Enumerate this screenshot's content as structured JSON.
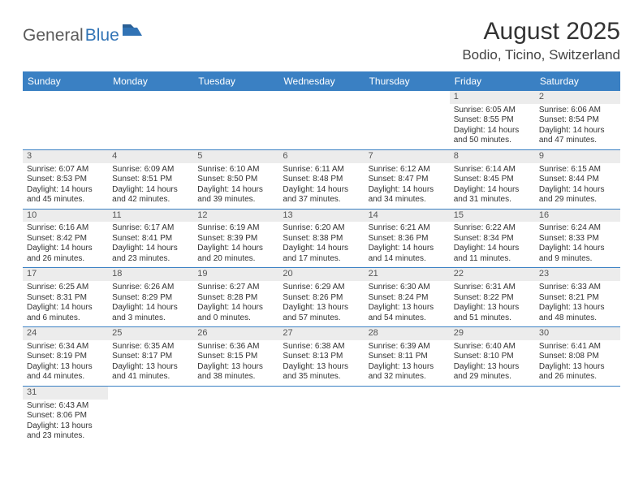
{
  "brand": {
    "general": "General",
    "blue": "Blue"
  },
  "title": "August 2025",
  "location": "Bodio, Ticino, Switzerland",
  "colors": {
    "header_bg": "#3a80c3",
    "header_fg": "#ffffff",
    "rule": "#3a80c3",
    "daynum_bg": "#ececec",
    "text": "#333333",
    "brand_gray": "#5a5a5a",
    "brand_blue": "#3173b5",
    "background": "#ffffff"
  },
  "typography": {
    "title_fontsize": 30,
    "location_fontsize": 17,
    "dayhead_fontsize": 12,
    "cell_fontsize": 10,
    "brand_fontsize": 21
  },
  "day_headers": [
    "Sunday",
    "Monday",
    "Tuesday",
    "Wednesday",
    "Thursday",
    "Friday",
    "Saturday"
  ],
  "weeks": [
    [
      null,
      null,
      null,
      null,
      null,
      {
        "n": "1",
        "sr": "Sunrise: 6:05 AM",
        "ss": "Sunset: 8:55 PM",
        "d1": "Daylight: 14 hours",
        "d2": "and 50 minutes."
      },
      {
        "n": "2",
        "sr": "Sunrise: 6:06 AM",
        "ss": "Sunset: 8:54 PM",
        "d1": "Daylight: 14 hours",
        "d2": "and 47 minutes."
      }
    ],
    [
      {
        "n": "3",
        "sr": "Sunrise: 6:07 AM",
        "ss": "Sunset: 8:53 PM",
        "d1": "Daylight: 14 hours",
        "d2": "and 45 minutes."
      },
      {
        "n": "4",
        "sr": "Sunrise: 6:09 AM",
        "ss": "Sunset: 8:51 PM",
        "d1": "Daylight: 14 hours",
        "d2": "and 42 minutes."
      },
      {
        "n": "5",
        "sr": "Sunrise: 6:10 AM",
        "ss": "Sunset: 8:50 PM",
        "d1": "Daylight: 14 hours",
        "d2": "and 39 minutes."
      },
      {
        "n": "6",
        "sr": "Sunrise: 6:11 AM",
        "ss": "Sunset: 8:48 PM",
        "d1": "Daylight: 14 hours",
        "d2": "and 37 minutes."
      },
      {
        "n": "7",
        "sr": "Sunrise: 6:12 AM",
        "ss": "Sunset: 8:47 PM",
        "d1": "Daylight: 14 hours",
        "d2": "and 34 minutes."
      },
      {
        "n": "8",
        "sr": "Sunrise: 6:14 AM",
        "ss": "Sunset: 8:45 PM",
        "d1": "Daylight: 14 hours",
        "d2": "and 31 minutes."
      },
      {
        "n": "9",
        "sr": "Sunrise: 6:15 AM",
        "ss": "Sunset: 8:44 PM",
        "d1": "Daylight: 14 hours",
        "d2": "and 29 minutes."
      }
    ],
    [
      {
        "n": "10",
        "sr": "Sunrise: 6:16 AM",
        "ss": "Sunset: 8:42 PM",
        "d1": "Daylight: 14 hours",
        "d2": "and 26 minutes."
      },
      {
        "n": "11",
        "sr": "Sunrise: 6:17 AM",
        "ss": "Sunset: 8:41 PM",
        "d1": "Daylight: 14 hours",
        "d2": "and 23 minutes."
      },
      {
        "n": "12",
        "sr": "Sunrise: 6:19 AM",
        "ss": "Sunset: 8:39 PM",
        "d1": "Daylight: 14 hours",
        "d2": "and 20 minutes."
      },
      {
        "n": "13",
        "sr": "Sunrise: 6:20 AM",
        "ss": "Sunset: 8:38 PM",
        "d1": "Daylight: 14 hours",
        "d2": "and 17 minutes."
      },
      {
        "n": "14",
        "sr": "Sunrise: 6:21 AM",
        "ss": "Sunset: 8:36 PM",
        "d1": "Daylight: 14 hours",
        "d2": "and 14 minutes."
      },
      {
        "n": "15",
        "sr": "Sunrise: 6:22 AM",
        "ss": "Sunset: 8:34 PM",
        "d1": "Daylight: 14 hours",
        "d2": "and 11 minutes."
      },
      {
        "n": "16",
        "sr": "Sunrise: 6:24 AM",
        "ss": "Sunset: 8:33 PM",
        "d1": "Daylight: 14 hours",
        "d2": "and 9 minutes."
      }
    ],
    [
      {
        "n": "17",
        "sr": "Sunrise: 6:25 AM",
        "ss": "Sunset: 8:31 PM",
        "d1": "Daylight: 14 hours",
        "d2": "and 6 minutes."
      },
      {
        "n": "18",
        "sr": "Sunrise: 6:26 AM",
        "ss": "Sunset: 8:29 PM",
        "d1": "Daylight: 14 hours",
        "d2": "and 3 minutes."
      },
      {
        "n": "19",
        "sr": "Sunrise: 6:27 AM",
        "ss": "Sunset: 8:28 PM",
        "d1": "Daylight: 14 hours",
        "d2": "and 0 minutes."
      },
      {
        "n": "20",
        "sr": "Sunrise: 6:29 AM",
        "ss": "Sunset: 8:26 PM",
        "d1": "Daylight: 13 hours",
        "d2": "and 57 minutes."
      },
      {
        "n": "21",
        "sr": "Sunrise: 6:30 AM",
        "ss": "Sunset: 8:24 PM",
        "d1": "Daylight: 13 hours",
        "d2": "and 54 minutes."
      },
      {
        "n": "22",
        "sr": "Sunrise: 6:31 AM",
        "ss": "Sunset: 8:22 PM",
        "d1": "Daylight: 13 hours",
        "d2": "and 51 minutes."
      },
      {
        "n": "23",
        "sr": "Sunrise: 6:33 AM",
        "ss": "Sunset: 8:21 PM",
        "d1": "Daylight: 13 hours",
        "d2": "and 48 minutes."
      }
    ],
    [
      {
        "n": "24",
        "sr": "Sunrise: 6:34 AM",
        "ss": "Sunset: 8:19 PM",
        "d1": "Daylight: 13 hours",
        "d2": "and 44 minutes."
      },
      {
        "n": "25",
        "sr": "Sunrise: 6:35 AM",
        "ss": "Sunset: 8:17 PM",
        "d1": "Daylight: 13 hours",
        "d2": "and 41 minutes."
      },
      {
        "n": "26",
        "sr": "Sunrise: 6:36 AM",
        "ss": "Sunset: 8:15 PM",
        "d1": "Daylight: 13 hours",
        "d2": "and 38 minutes."
      },
      {
        "n": "27",
        "sr": "Sunrise: 6:38 AM",
        "ss": "Sunset: 8:13 PM",
        "d1": "Daylight: 13 hours",
        "d2": "and 35 minutes."
      },
      {
        "n": "28",
        "sr": "Sunrise: 6:39 AM",
        "ss": "Sunset: 8:11 PM",
        "d1": "Daylight: 13 hours",
        "d2": "and 32 minutes."
      },
      {
        "n": "29",
        "sr": "Sunrise: 6:40 AM",
        "ss": "Sunset: 8:10 PM",
        "d1": "Daylight: 13 hours",
        "d2": "and 29 minutes."
      },
      {
        "n": "30",
        "sr": "Sunrise: 6:41 AM",
        "ss": "Sunset: 8:08 PM",
        "d1": "Daylight: 13 hours",
        "d2": "and 26 minutes."
      }
    ],
    [
      {
        "n": "31",
        "sr": "Sunrise: 6:43 AM",
        "ss": "Sunset: 8:06 PM",
        "d1": "Daylight: 13 hours",
        "d2": "and 23 minutes."
      },
      null,
      null,
      null,
      null,
      null,
      null
    ]
  ]
}
